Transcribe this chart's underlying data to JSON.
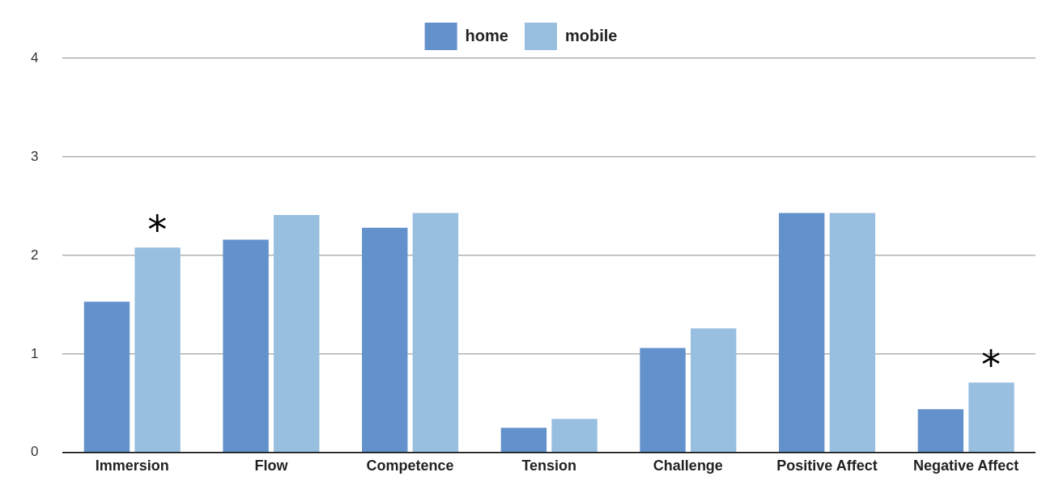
{
  "chart_data": {
    "type": "bar",
    "categories": [
      "Immersion",
      "Flow",
      "Competence",
      "Tension",
      "Challenge",
      "Positive Affect",
      "Negative Affect"
    ],
    "series": [
      {
        "name": "home",
        "color": "#6391cb",
        "values": [
          1.53,
          2.16,
          2.28,
          0.25,
          1.06,
          2.43,
          0.44
        ]
      },
      {
        "name": "mobile",
        "color": "#98bee0",
        "values": [
          2.08,
          2.41,
          2.43,
          0.34,
          1.26,
          2.43,
          0.71
        ]
      }
    ],
    "ylim": [
      0,
      4
    ],
    "yticks": [
      0,
      1,
      2,
      3,
      4
    ],
    "grid": "y",
    "legend": "top",
    "annotations": [
      {
        "text": "*",
        "x": "Immersion",
        "y": 2.08
      },
      {
        "text": "*",
        "x": "Negative Affect",
        "y": 0.71
      }
    ]
  }
}
